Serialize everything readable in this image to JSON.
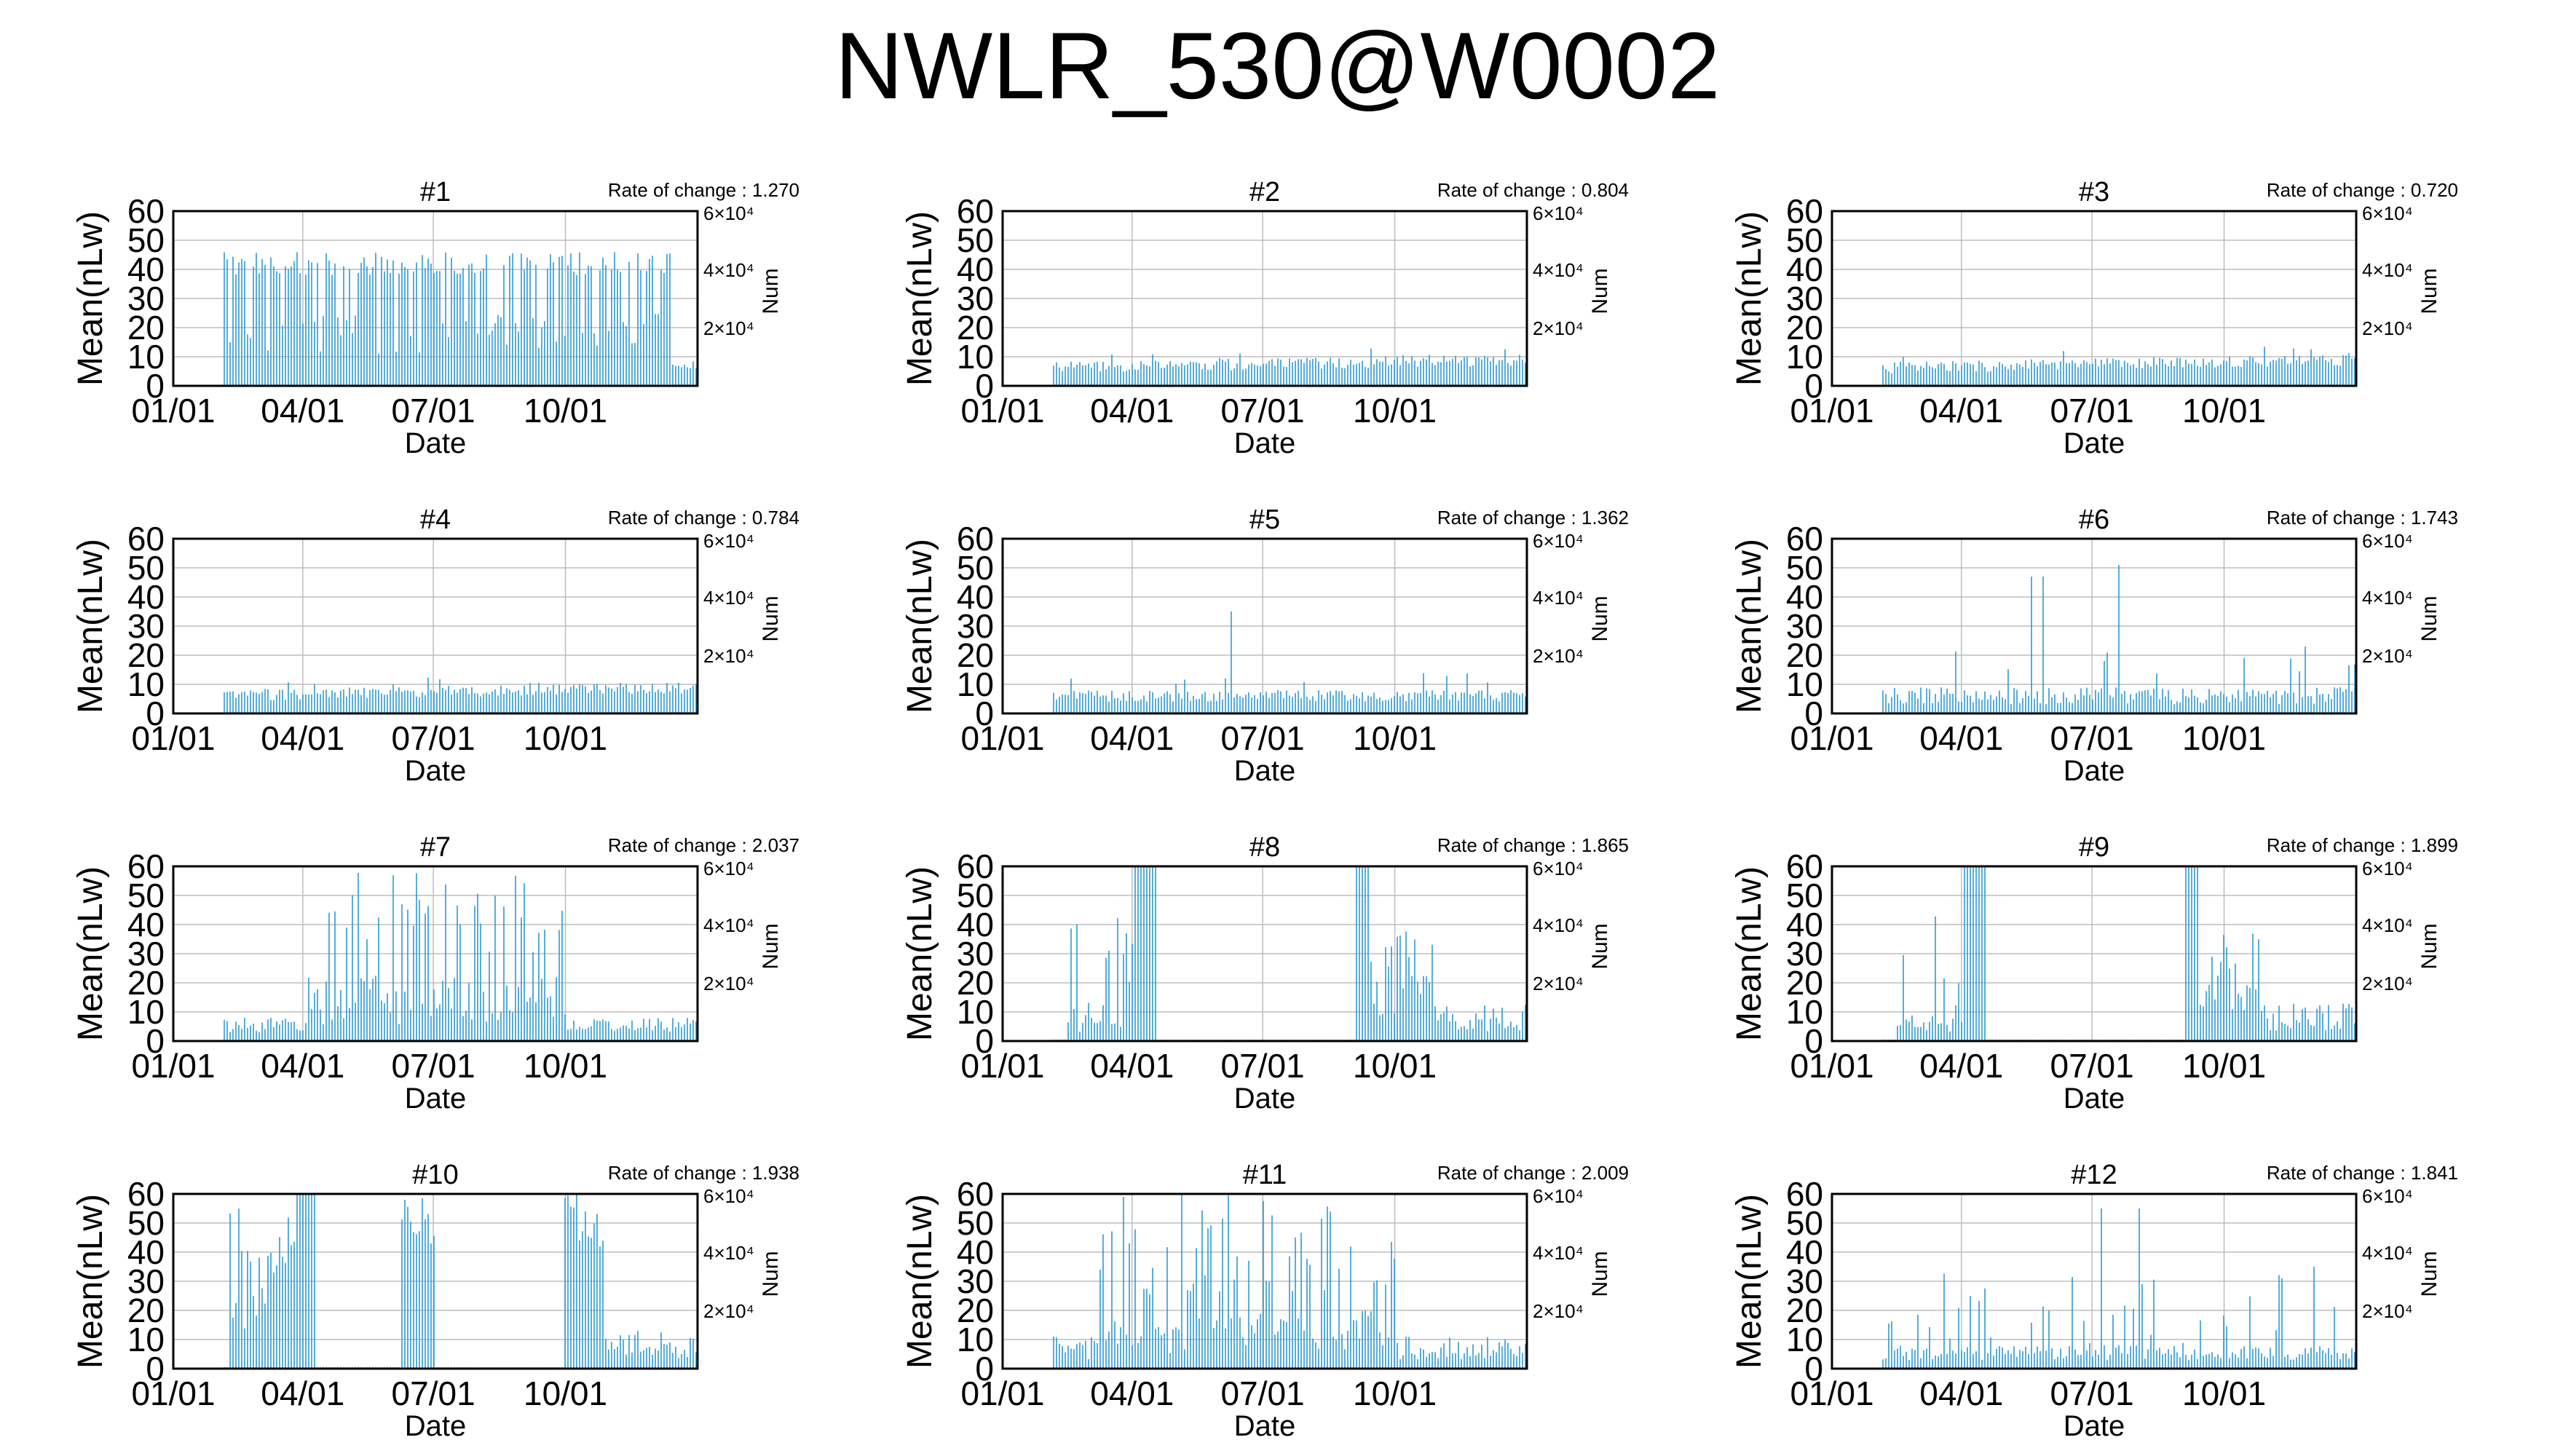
{
  "title": "NWLR_530@W0002",
  "y_axis_label": "Mean(nLw)",
  "y2_axis_label": "Num",
  "x_axis_label": "Date",
  "x_tick_labels": [
    "01/01",
    "04/01",
    "07/01",
    "10/01"
  ],
  "y_tick_labels": [
    "0",
    "10",
    "20",
    "30",
    "40",
    "50",
    "60"
  ],
  "y2_tick_labels": [
    "2×10⁴",
    "4×10⁴",
    "6×10⁴"
  ],
  "rate_prefix": "Rate of change : ",
  "colors": {
    "bars": "#2c9ad1",
    "grid": "#bdbdbd",
    "axis": "#000000"
  },
  "chart_data": [
    {
      "type": "bar",
      "panel": "#1",
      "rate": "1.270",
      "profile": "high",
      "ylim": [
        0,
        60
      ],
      "x_range": [
        "01/01",
        "12/31"
      ]
    },
    {
      "type": "bar",
      "panel": "#2",
      "rate": "0.804",
      "profile": "low",
      "ylim": [
        0,
        60
      ],
      "x_range": [
        "01/01",
        "12/31"
      ]
    },
    {
      "type": "bar",
      "panel": "#3",
      "rate": "0.720",
      "profile": "low",
      "ylim": [
        0,
        60
      ],
      "x_range": [
        "01/01",
        "12/31"
      ]
    },
    {
      "type": "bar",
      "panel": "#4",
      "rate": "0.784",
      "profile": "low",
      "ylim": [
        0,
        60
      ],
      "x_range": [
        "01/01",
        "12/31"
      ]
    },
    {
      "type": "bar",
      "panel": "#5",
      "rate": "1.362",
      "profile": "low-spike",
      "ylim": [
        0,
        60
      ],
      "x_range": [
        "01/01",
        "12/31"
      ]
    },
    {
      "type": "bar",
      "panel": "#6",
      "rate": "1.743",
      "profile": "medium-spike",
      "ylim": [
        0,
        60
      ],
      "x_range": [
        "01/01",
        "12/31"
      ]
    },
    {
      "type": "bar",
      "panel": "#7",
      "rate": "2.037",
      "profile": "mid-season",
      "ylim": [
        0,
        60
      ],
      "x_range": [
        "01/01",
        "12/31"
      ]
    },
    {
      "type": "bar",
      "panel": "#8",
      "rate": "1.865",
      "profile": "early-late",
      "ylim": [
        0,
        60
      ],
      "x_range": [
        "01/01",
        "12/31"
      ]
    },
    {
      "type": "bar",
      "panel": "#9",
      "rate": "1.899",
      "profile": "early-late",
      "ylim": [
        0,
        60
      ],
      "x_range": [
        "01/01",
        "12/31"
      ]
    },
    {
      "type": "bar",
      "panel": "#10",
      "rate": "1.938",
      "profile": "three-bursts",
      "ylim": [
        0,
        60
      ],
      "x_range": [
        "01/01",
        "12/31"
      ]
    },
    {
      "type": "bar",
      "panel": "#11",
      "rate": "2.009",
      "profile": "broad-high",
      "ylim": [
        0,
        60
      ],
      "x_range": [
        "01/01",
        "12/31"
      ]
    },
    {
      "type": "bar",
      "panel": "#12",
      "rate": "1.841",
      "profile": "scattered",
      "ylim": [
        0,
        60
      ],
      "x_range": [
        "01/01",
        "12/31"
      ]
    }
  ]
}
